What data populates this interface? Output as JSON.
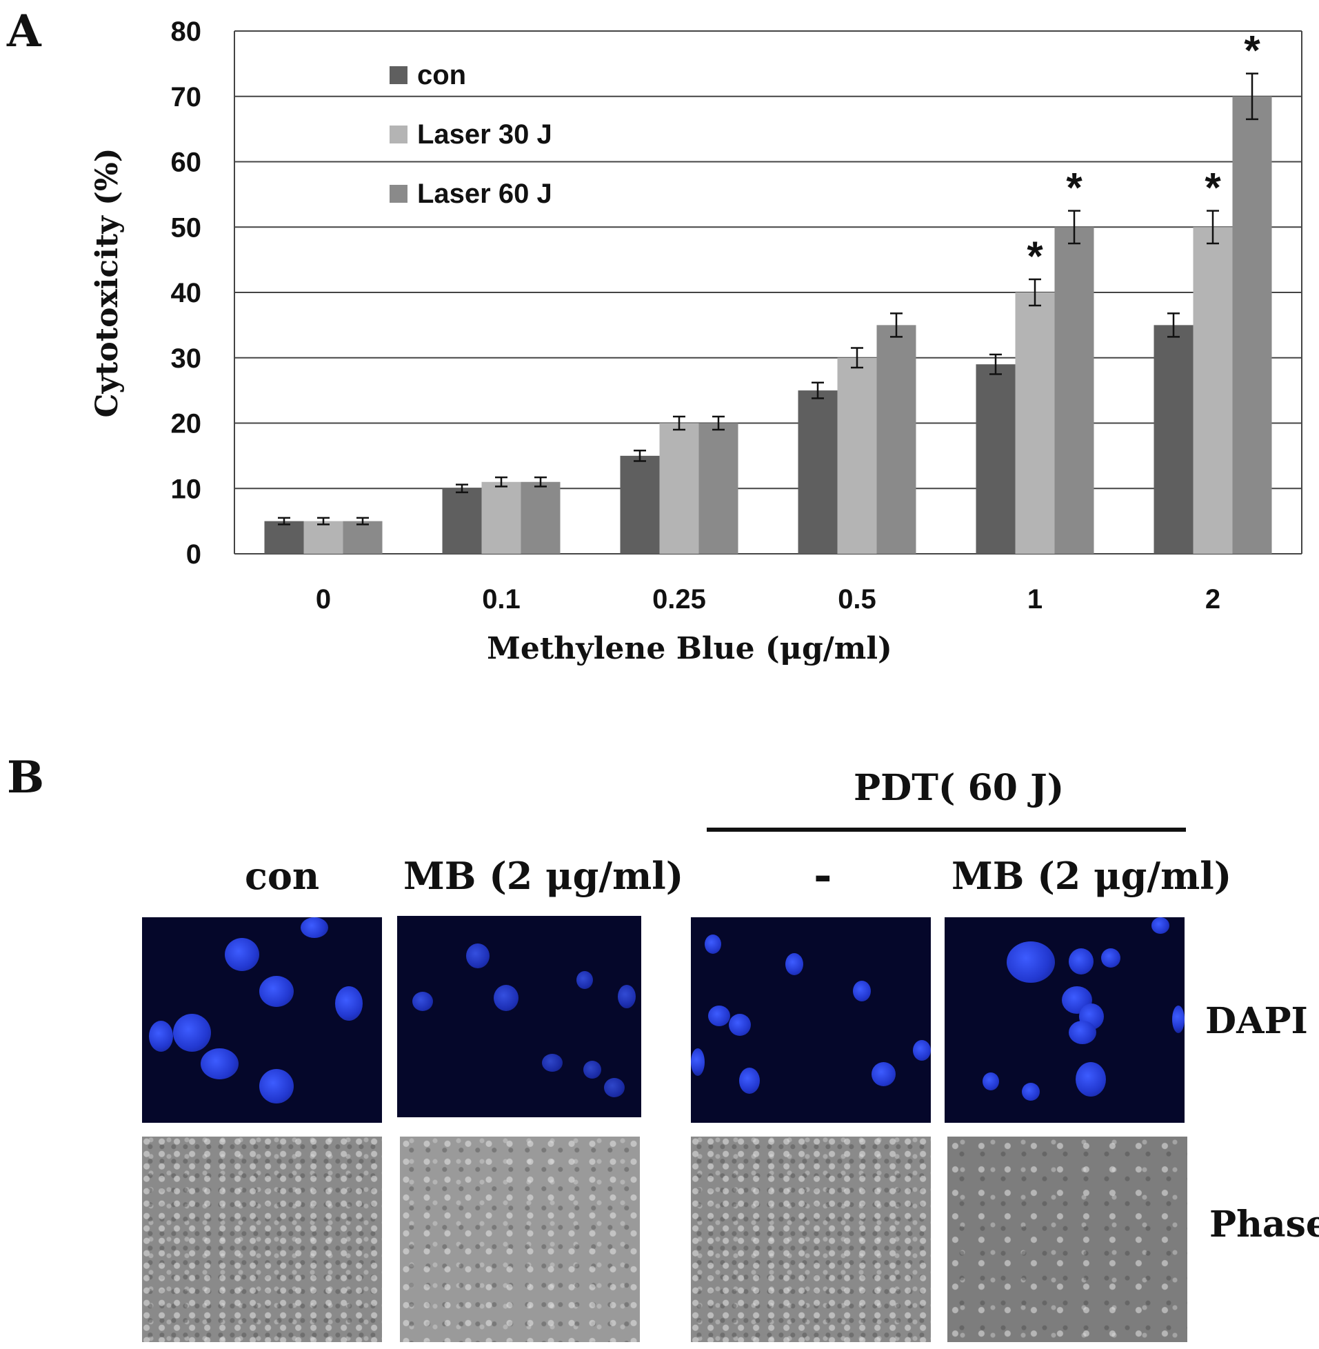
{
  "panel_a": {
    "letter": "A"
  },
  "panel_b": {
    "letter": "B"
  },
  "chart_data": {
    "type": "bar",
    "title": "",
    "xlabel": "Methylene Blue (μg/ml)",
    "ylabel": "Cytotoxicity (%)",
    "ylim": [
      0,
      80
    ],
    "yticks": [
      0,
      10,
      20,
      30,
      40,
      50,
      60,
      70,
      80
    ],
    "grid": true,
    "legend_position": "top-left",
    "categories": [
      "0",
      "0.1",
      "0.25",
      "0.5",
      "1",
      "2"
    ],
    "series": [
      {
        "name": "con",
        "color": "#5f5f5f",
        "values": [
          5,
          10,
          15,
          25,
          29,
          35
        ],
        "errors": [
          0.5,
          0.6,
          0.8,
          1.2,
          1.5,
          1.8
        ],
        "significant": [
          false,
          false,
          false,
          false,
          false,
          false
        ]
      },
      {
        "name": "Laser 30 J",
        "color": "#b4b4b4",
        "values": [
          5,
          11,
          20,
          30,
          40,
          50
        ],
        "errors": [
          0.5,
          0.7,
          1.0,
          1.5,
          2.0,
          2.5
        ],
        "significant": [
          false,
          false,
          false,
          false,
          true,
          true
        ]
      },
      {
        "name": "Laser 60 J",
        "color": "#8a8a8a",
        "values": [
          5,
          11,
          20,
          35,
          50,
          70
        ],
        "errors": [
          0.5,
          0.7,
          1.0,
          1.8,
          2.5,
          3.5
        ],
        "significant": [
          false,
          false,
          false,
          false,
          true,
          true
        ]
      }
    ],
    "significance_marker": "*"
  },
  "micrographs": {
    "group_header": "PDT( 60 J)",
    "columns": [
      "con",
      "MB (2 μg/ml)",
      "-",
      "MB (2 μg/ml)"
    ],
    "rows": [
      "DAPI",
      "Phase"
    ]
  }
}
